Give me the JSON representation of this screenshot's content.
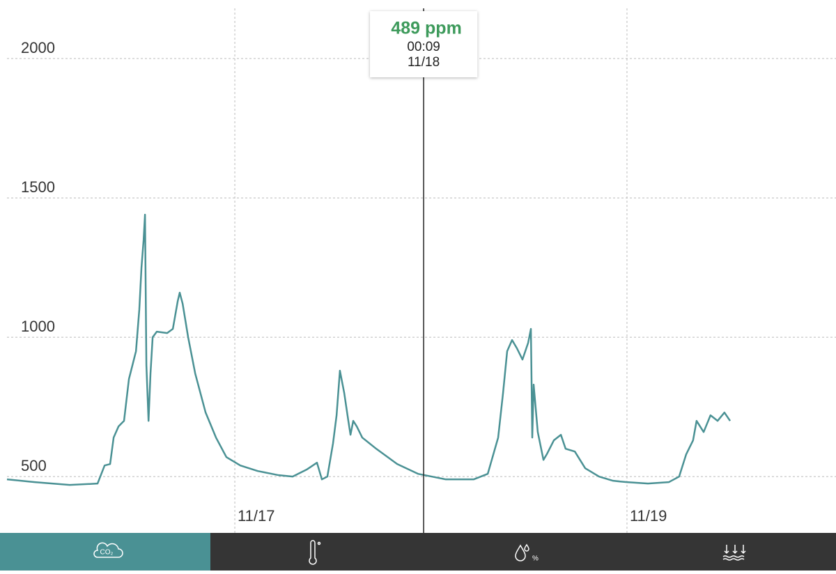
{
  "chart_data": {
    "type": "line",
    "series": [
      {
        "color": "#4a9194",
        "x": [
          15.838,
          15.98,
          16.158,
          16.3,
          16.336,
          16.364,
          16.382,
          16.407,
          16.435,
          16.46,
          16.478,
          16.496,
          16.513,
          16.524,
          16.535,
          16.542,
          16.549,
          16.56,
          16.57,
          16.581,
          16.602,
          16.655,
          16.684,
          16.709,
          16.719,
          16.734,
          16.762,
          16.798,
          16.851,
          16.904,
          16.957,
          17.028,
          17.117,
          17.224,
          17.295,
          17.366,
          17.419,
          17.444,
          17.472,
          17.501,
          17.519,
          17.536,
          17.558,
          17.579,
          17.59,
          17.604,
          17.622,
          17.65,
          17.721,
          17.828,
          17.934,
          18.076,
          18.218,
          18.29,
          18.343,
          18.368,
          18.389,
          18.414,
          18.439,
          18.467,
          18.496,
          18.51,
          18.517,
          18.524,
          18.545,
          18.574,
          18.591,
          18.627,
          18.663,
          18.687,
          18.734,
          18.787,
          18.858,
          18.929,
          19.0,
          19.107,
          19.213,
          19.266,
          19.302,
          19.337,
          19.355,
          19.391,
          19.426,
          19.462,
          19.497,
          19.526
        ],
        "values": [
          490,
          480,
          470,
          475,
          540,
          545,
          640,
          680,
          700,
          850,
          900,
          950,
          1100,
          1250,
          1350,
          1440,
          900,
          700,
          870,
          1000,
          1020,
          1015,
          1030,
          1130,
          1160,
          1120,
          1000,
          870,
          730,
          640,
          570,
          540,
          520,
          505,
          500,
          525,
          550,
          490,
          500,
          620,
          720,
          880,
          800,
          700,
          650,
          700,
          680,
          640,
          600,
          545,
          510,
          490,
          490,
          510,
          640,
          800,
          950,
          990,
          960,
          920,
          980,
          1030,
          640,
          830,
          660,
          560,
          580,
          630,
          650,
          600,
          590,
          530,
          500,
          485,
          480,
          475,
          480,
          500,
          580,
          630,
          700,
          660,
          720,
          700,
          730,
          700
        ]
      }
    ],
    "xlim": [
      15.838,
      20.066
    ],
    "xticks": [
      {
        "value": 17,
        "label": "11/17"
      },
      {
        "value": 19,
        "label": "11/19"
      }
    ],
    "ylim": [
      298,
      2210
    ],
    "yticks": [
      500,
      1000,
      1500,
      2000
    ],
    "grid": true,
    "cursor": {
      "x": 17.963,
      "value": 489,
      "value_label": "489 ppm",
      "time": "00:09",
      "date": "11/18"
    }
  },
  "nav": {
    "co2_label": "CO₂"
  }
}
